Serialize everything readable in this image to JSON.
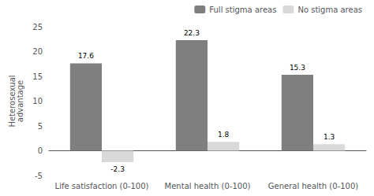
{
  "chart_data": {
    "type": "bar",
    "categories": [
      "Life satisfaction (0-100)",
      "Mental health (0-100)",
      "General health (0-100)"
    ],
    "ylabel": "Heterosexual\nadvantage",
    "series": [
      {
        "name": "Full stigma areas",
        "color": "#7f7f7f",
        "values": [
          17.6,
          22.3,
          15.3
        ]
      },
      {
        "name": "No stigma areas",
        "color": "#d9d9d9",
        "values": [
          -2.3,
          1.8,
          1.3
        ]
      }
    ],
    "ylim": [
      -5,
      25
    ],
    "yticks": [
      -5,
      0,
      5,
      10,
      15,
      20,
      25
    ],
    "grid": false,
    "legend": "upper right",
    "data_labels": true
  }
}
